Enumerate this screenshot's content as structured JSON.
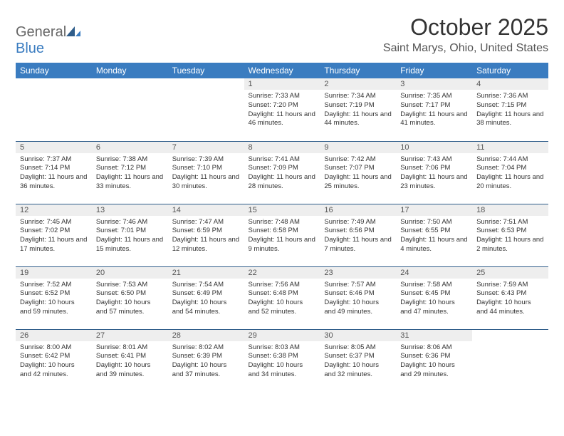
{
  "logo": {
    "part1": "General",
    "part2": "Blue"
  },
  "title": "October 2025",
  "location": "Saint Marys, Ohio, United States",
  "header_bg": "#3a7cc0",
  "header_text": "#ffffff",
  "cell_border": "#2f5d8a",
  "daynum_bg": "#eeeeee",
  "body_font_size": 9.5,
  "weekdays": [
    "Sunday",
    "Monday",
    "Tuesday",
    "Wednesday",
    "Thursday",
    "Friday",
    "Saturday"
  ],
  "weeks": [
    [
      null,
      null,
      null,
      {
        "n": "1",
        "sunrise": "7:33 AM",
        "sunset": "7:20 PM",
        "day_h": 11,
        "day_m": 46
      },
      {
        "n": "2",
        "sunrise": "7:34 AM",
        "sunset": "7:19 PM",
        "day_h": 11,
        "day_m": 44
      },
      {
        "n": "3",
        "sunrise": "7:35 AM",
        "sunset": "7:17 PM",
        "day_h": 11,
        "day_m": 41
      },
      {
        "n": "4",
        "sunrise": "7:36 AM",
        "sunset": "7:15 PM",
        "day_h": 11,
        "day_m": 38
      }
    ],
    [
      {
        "n": "5",
        "sunrise": "7:37 AM",
        "sunset": "7:14 PM",
        "day_h": 11,
        "day_m": 36
      },
      {
        "n": "6",
        "sunrise": "7:38 AM",
        "sunset": "7:12 PM",
        "day_h": 11,
        "day_m": 33
      },
      {
        "n": "7",
        "sunrise": "7:39 AM",
        "sunset": "7:10 PM",
        "day_h": 11,
        "day_m": 30
      },
      {
        "n": "8",
        "sunrise": "7:41 AM",
        "sunset": "7:09 PM",
        "day_h": 11,
        "day_m": 28
      },
      {
        "n": "9",
        "sunrise": "7:42 AM",
        "sunset": "7:07 PM",
        "day_h": 11,
        "day_m": 25
      },
      {
        "n": "10",
        "sunrise": "7:43 AM",
        "sunset": "7:06 PM",
        "day_h": 11,
        "day_m": 23
      },
      {
        "n": "11",
        "sunrise": "7:44 AM",
        "sunset": "7:04 PM",
        "day_h": 11,
        "day_m": 20
      }
    ],
    [
      {
        "n": "12",
        "sunrise": "7:45 AM",
        "sunset": "7:02 PM",
        "day_h": 11,
        "day_m": 17
      },
      {
        "n": "13",
        "sunrise": "7:46 AM",
        "sunset": "7:01 PM",
        "day_h": 11,
        "day_m": 15
      },
      {
        "n": "14",
        "sunrise": "7:47 AM",
        "sunset": "6:59 PM",
        "day_h": 11,
        "day_m": 12
      },
      {
        "n": "15",
        "sunrise": "7:48 AM",
        "sunset": "6:58 PM",
        "day_h": 11,
        "day_m": 9
      },
      {
        "n": "16",
        "sunrise": "7:49 AM",
        "sunset": "6:56 PM",
        "day_h": 11,
        "day_m": 7
      },
      {
        "n": "17",
        "sunrise": "7:50 AM",
        "sunset": "6:55 PM",
        "day_h": 11,
        "day_m": 4
      },
      {
        "n": "18",
        "sunrise": "7:51 AM",
        "sunset": "6:53 PM",
        "day_h": 11,
        "day_m": 2
      }
    ],
    [
      {
        "n": "19",
        "sunrise": "7:52 AM",
        "sunset": "6:52 PM",
        "day_h": 10,
        "day_m": 59
      },
      {
        "n": "20",
        "sunrise": "7:53 AM",
        "sunset": "6:50 PM",
        "day_h": 10,
        "day_m": 57
      },
      {
        "n": "21",
        "sunrise": "7:54 AM",
        "sunset": "6:49 PM",
        "day_h": 10,
        "day_m": 54
      },
      {
        "n": "22",
        "sunrise": "7:56 AM",
        "sunset": "6:48 PM",
        "day_h": 10,
        "day_m": 52
      },
      {
        "n": "23",
        "sunrise": "7:57 AM",
        "sunset": "6:46 PM",
        "day_h": 10,
        "day_m": 49
      },
      {
        "n": "24",
        "sunrise": "7:58 AM",
        "sunset": "6:45 PM",
        "day_h": 10,
        "day_m": 47
      },
      {
        "n": "25",
        "sunrise": "7:59 AM",
        "sunset": "6:43 PM",
        "day_h": 10,
        "day_m": 44
      }
    ],
    [
      {
        "n": "26",
        "sunrise": "8:00 AM",
        "sunset": "6:42 PM",
        "day_h": 10,
        "day_m": 42
      },
      {
        "n": "27",
        "sunrise": "8:01 AM",
        "sunset": "6:41 PM",
        "day_h": 10,
        "day_m": 39
      },
      {
        "n": "28",
        "sunrise": "8:02 AM",
        "sunset": "6:39 PM",
        "day_h": 10,
        "day_m": 37
      },
      {
        "n": "29",
        "sunrise": "8:03 AM",
        "sunset": "6:38 PM",
        "day_h": 10,
        "day_m": 34
      },
      {
        "n": "30",
        "sunrise": "8:05 AM",
        "sunset": "6:37 PM",
        "day_h": 10,
        "day_m": 32
      },
      {
        "n": "31",
        "sunrise": "8:06 AM",
        "sunset": "6:36 PM",
        "day_h": 10,
        "day_m": 29
      },
      null
    ]
  ]
}
